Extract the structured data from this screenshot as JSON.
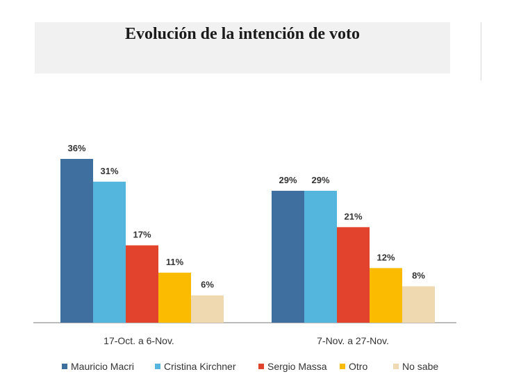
{
  "chart_data": {
    "type": "bar",
    "title": "Evolución de la intención de voto",
    "categories": [
      "17-Oct. a 6-Nov.",
      "7-Nov. a 27-Nov."
    ],
    "series": [
      {
        "name": "Mauricio Macri",
        "color": "#3f6f9f",
        "values": [
          36,
          29
        ],
        "labels": [
          "36%",
          "29%"
        ]
      },
      {
        "name": "Cristina Kirchner",
        "color": "#54b6dd",
        "values": [
          31,
          29
        ],
        "labels": [
          "31%",
          "29%"
        ]
      },
      {
        "name": "Sergio Massa",
        "color": "#e2432c",
        "values": [
          17,
          21
        ],
        "labels": [
          "17%",
          "21%"
        ]
      },
      {
        "name": "Otro",
        "color": "#fbbb00",
        "values": [
          11,
          12
        ],
        "labels": [
          "11%",
          "12%"
        ]
      },
      {
        "name": "No sabe",
        "color": "#eed9b1",
        "values": [
          6,
          8
        ],
        "labels": [
          "6%",
          "8%"
        ]
      }
    ],
    "ylim": [
      0,
      36
    ],
    "grid": false,
    "legend": "bottom"
  }
}
